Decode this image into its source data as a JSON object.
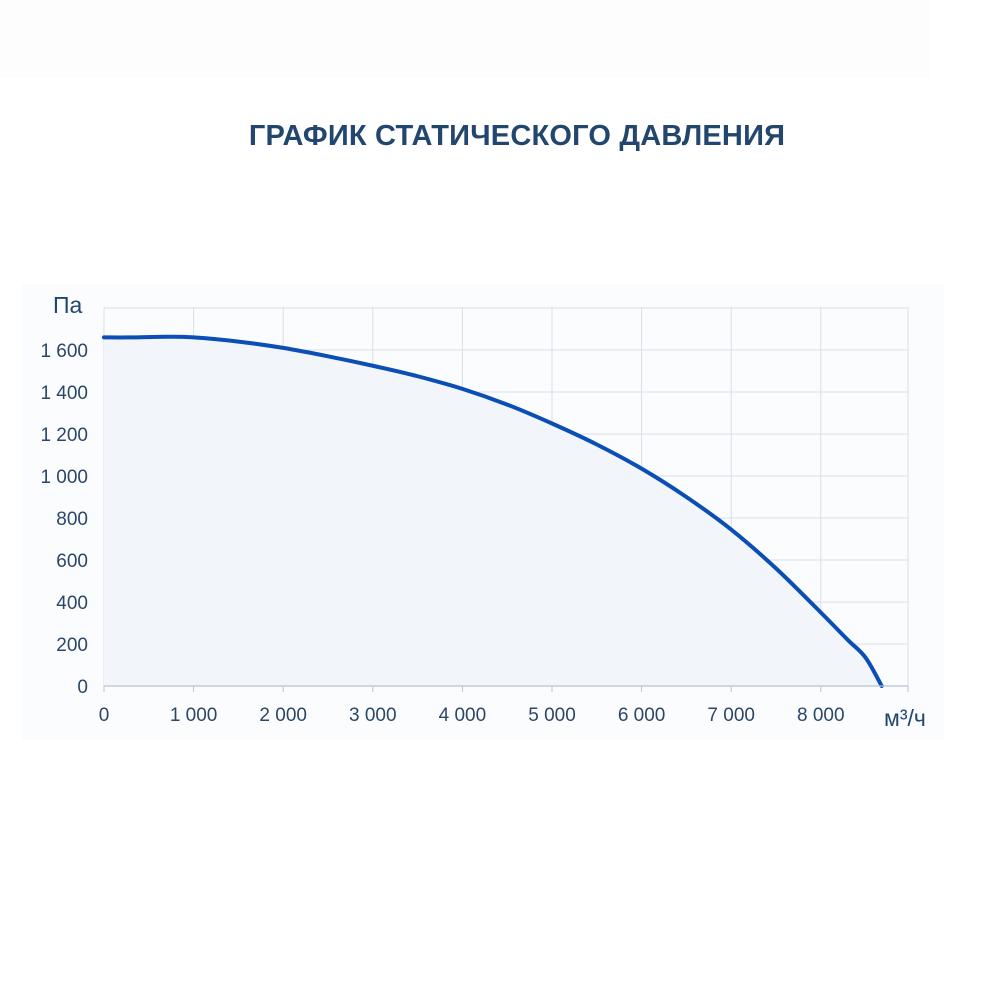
{
  "chart_data": {
    "type": "area",
    "title": "ГРАФИК СТАТИЧЕСКОГО ДАВЛЕНИЯ",
    "xlabel": "м³/ч",
    "ylabel": "Па",
    "xlim": [
      0,
      9000
    ],
    "ylim": [
      0,
      1800
    ],
    "x_ticks": [
      0,
      1000,
      2000,
      3000,
      4000,
      5000,
      6000,
      7000,
      8000
    ],
    "x_tick_labels": [
      "0",
      "1 000",
      "2 000",
      "3 000",
      "4 000",
      "5 000",
      "6 000",
      "7 000",
      "8 000"
    ],
    "y_ticks": [
      0,
      200,
      400,
      600,
      800,
      1000,
      1200,
      1400,
      1600
    ],
    "y_tick_labels": [
      "0",
      "200",
      "400",
      "600",
      "800",
      "1 000",
      "1 200",
      "1 400",
      "1 600"
    ],
    "grid": true,
    "colors": {
      "line": "#0b4eb5",
      "fill": "#f2f5fa",
      "grid": "#d8dee8",
      "text": "#23466f"
    },
    "series": [
      {
        "x": [
          0,
          300,
          700,
          1000,
          1500,
          2000,
          2500,
          3000,
          3500,
          4000,
          4500,
          5000,
          5500,
          6000,
          6500,
          7000,
          7500,
          8000,
          8300,
          8500,
          8680
        ],
        "values": [
          1660,
          1660,
          1663,
          1660,
          1640,
          1610,
          1570,
          1525,
          1475,
          1415,
          1340,
          1250,
          1150,
          1035,
          900,
          745,
          560,
          350,
          220,
          135,
          0
        ]
      }
    ]
  }
}
